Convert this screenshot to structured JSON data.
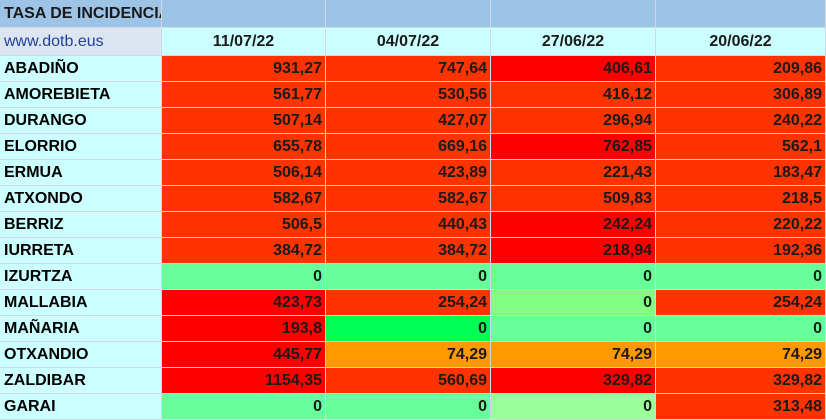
{
  "header": {
    "title": "TASA DE INCIDENCIA",
    "source": "www.dotb.eus",
    "dates": [
      "11/07/22",
      "04/07/22",
      "27/06/22",
      "20/06/22"
    ]
  },
  "table": {
    "rows": [
      {
        "label": "ABADIÑO",
        "values": [
          "931,27",
          "747,64",
          "406,61",
          "209,86"
        ],
        "colors": [
          "#ff3300",
          "#ff3300",
          "#ff0000",
          "#ff3300"
        ]
      },
      {
        "label": "AMOREBIETA",
        "values": [
          "561,77",
          "530,56",
          "416,12",
          "306,89"
        ],
        "colors": [
          "#ff3300",
          "#ff3300",
          "#ff3300",
          "#ff3300"
        ]
      },
      {
        "label": "DURANGO",
        "values": [
          "507,14",
          "427,07",
          "296,94",
          "240,22"
        ],
        "colors": [
          "#ff3300",
          "#ff3300",
          "#ff3300",
          "#ff3300"
        ]
      },
      {
        "label": "ELORRIO",
        "values": [
          "655,78",
          "669,16",
          "762,85",
          "562,1"
        ],
        "colors": [
          "#ff3300",
          "#ff3300",
          "#ff0000",
          "#ff3300"
        ]
      },
      {
        "label": "ERMUA",
        "values": [
          "506,14",
          "423,89",
          "221,43",
          "183,47"
        ],
        "colors": [
          "#ff3300",
          "#ff3300",
          "#ff3300",
          "#ff3300"
        ]
      },
      {
        "label": "ATXONDO",
        "values": [
          "582,67",
          "582,67",
          "509,83",
          "218,5"
        ],
        "colors": [
          "#ff3300",
          "#ff3300",
          "#ff3300",
          "#ff3300"
        ]
      },
      {
        "label": "BERRIZ",
        "values": [
          "506,5",
          "440,43",
          "242,24",
          "220,22"
        ],
        "colors": [
          "#ff3300",
          "#ff3300",
          "#ff0000",
          "#ff3300"
        ]
      },
      {
        "label": "IURRETA",
        "values": [
          "384,72",
          "384,72",
          "218,94",
          "192,36"
        ],
        "colors": [
          "#ff3300",
          "#ff3300",
          "#ff0000",
          "#ff3300"
        ]
      },
      {
        "label": "IZURTZA",
        "values": [
          "0",
          "0",
          "0",
          "0"
        ],
        "colors": [
          "#66ff99",
          "#66ff99",
          "#66ff99",
          "#66ff99"
        ]
      },
      {
        "label": "MALLABIA",
        "values": [
          "423,73",
          "254,24",
          "0",
          "254,24"
        ],
        "colors": [
          "#ff0000",
          "#ff3300",
          "#80ff80",
          "#ff3300"
        ]
      },
      {
        "label": "MAÑARIA",
        "values": [
          "193,8",
          "0",
          "0",
          "0"
        ],
        "colors": [
          "#ff0000",
          "#00ff55",
          "#66ff99",
          "#66ff99"
        ]
      },
      {
        "label": "OTXANDIO",
        "values": [
          "445,77",
          "74,29",
          "74,29",
          "74,29"
        ],
        "colors": [
          "#ff0000",
          "#ff9900",
          "#ff9900",
          "#ff9900"
        ]
      },
      {
        "label": "ZALDIBAR",
        "values": [
          "1154,35",
          "560,69",
          "329,82",
          "329,82"
        ],
        "colors": [
          "#ff0000",
          "#ff3300",
          "#ff0000",
          "#ff3300"
        ]
      },
      {
        "label": "GARAI",
        "values": [
          "0",
          "0",
          "0",
          "313,48"
        ],
        "colors": [
          "#66ff99",
          "#66ff99",
          "#99ff99",
          "#ff3300"
        ]
      }
    ]
  }
}
